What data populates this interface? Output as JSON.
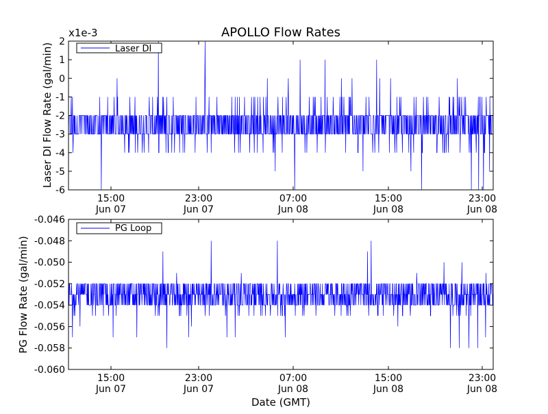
{
  "chart_data": [
    {
      "type": "line",
      "title": "APOLLO Flow Rates",
      "xlabel": "",
      "ylabel": "Laser DI Flow Rate (gal/min)",
      "scale_note": "x1e-3",
      "ylim": [
        -6,
        2
      ],
      "yticks": [
        "2",
        "1",
        "0",
        "-1",
        "-2",
        "-3",
        "-4",
        "-5",
        "-6"
      ],
      "xticks": [
        {
          "time": "15:00",
          "date": "Jun 07"
        },
        {
          "time": "23:00",
          "date": "Jun 07"
        },
        {
          "time": "07:00",
          "date": "Jun 08"
        },
        {
          "time": "15:00",
          "date": "Jun 08"
        },
        {
          "time": "23:00",
          "date": "Jun 08"
        }
      ],
      "xlim_hours": [
        11.5,
        23.6
      ],
      "legend": {
        "placement": "top-left",
        "entries": [
          "Laser DI"
        ]
      },
      "series": [
        {
          "name": "Laser DI",
          "color": "#0000ff",
          "summary": {
            "typical_range": [
              -3,
              -2
            ],
            "frequent_range": [
              -4,
              -1
            ],
            "min": -6,
            "max": 2,
            "quantization": 1
          }
        }
      ]
    },
    {
      "type": "line",
      "title": "",
      "xlabel": "Date (GMT)",
      "ylabel": "PG Flow Rate (gal/min)",
      "ylim": [
        -0.06,
        -0.046
      ],
      "yticks": [
        "-0.046",
        "-0.048",
        "-0.050",
        "-0.052",
        "-0.054",
        "-0.056",
        "-0.058",
        "-0.060"
      ],
      "xticks": [
        {
          "time": "15:00",
          "date": "Jun 07"
        },
        {
          "time": "23:00",
          "date": "Jun 07"
        },
        {
          "time": "07:00",
          "date": "Jun 08"
        },
        {
          "time": "15:00",
          "date": "Jun 08"
        },
        {
          "time": "23:00",
          "date": "Jun 08"
        }
      ],
      "legend": {
        "placement": "top-left",
        "entries": [
          "PG Loop"
        ]
      },
      "series": [
        {
          "name": "PG Loop",
          "color": "#0000ff",
          "summary": {
            "typical_range": [
              -0.054,
              -0.052
            ],
            "frequent_range": [
              -0.055,
              -0.052
            ],
            "min": -0.059,
            "max": -0.0473,
            "quantization": 0.001
          }
        }
      ]
    }
  ]
}
